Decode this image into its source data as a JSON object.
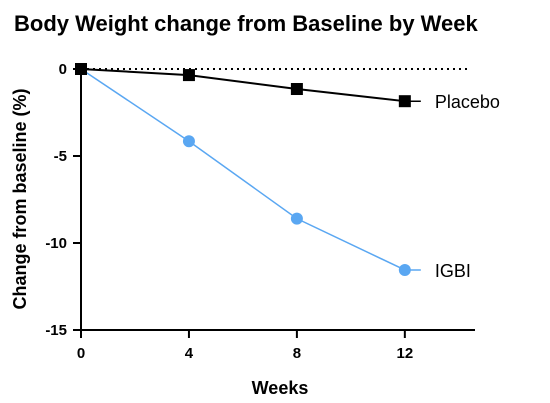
{
  "chart_data": {
    "type": "line",
    "title": "Body Weight change from Baseline by Week",
    "xlabel": "Weeks",
    "ylabel": "Change from baseline (%)",
    "xlim": [
      0,
      14.6
    ],
    "ylim": [
      -15,
      0
    ],
    "x_ticks": [
      0,
      4,
      8,
      12
    ],
    "y_ticks": [
      0,
      -5,
      -10,
      -15
    ],
    "x_tick_labels": [
      "0",
      "4",
      "8",
      "12"
    ],
    "y_tick_labels": [
      "0",
      "-5",
      "-10",
      "-15"
    ],
    "x": [
      0,
      4,
      8,
      12
    ],
    "grid": false,
    "reference_line": {
      "y": 0,
      "style": "dotted"
    },
    "legend": "inline labels at line ends",
    "series": [
      {
        "name": "Placebo",
        "color": "#000000",
        "marker": "square",
        "values": [
          0,
          -0.35,
          -1.15,
          -1.85
        ]
      },
      {
        "name": "IGBI",
        "color": "#5aa7f2",
        "marker": "circle",
        "values": [
          0,
          -4.15,
          -8.6,
          -11.55
        ]
      }
    ]
  }
}
